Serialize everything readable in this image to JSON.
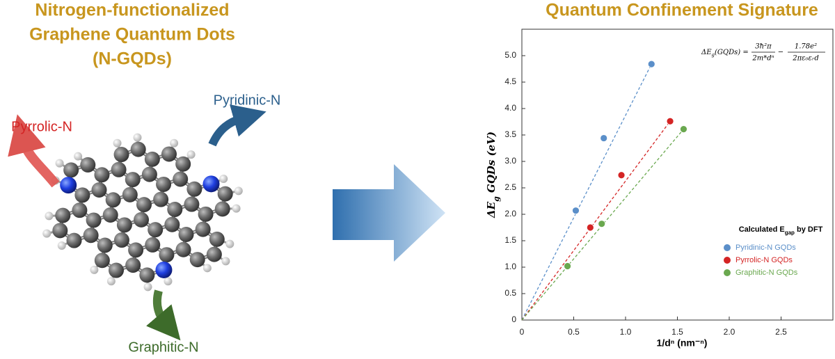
{
  "left_panel": {
    "title": [
      "Nitrogen-functionalized",
      "Graphene Quantum Dots",
      "(N-GQDs)"
    ],
    "labels": {
      "pyrrolic": "Pyrrolic-N",
      "pyridinic": "Pyridinic-N",
      "graphitic": "Graphitic-N"
    }
  },
  "chart_data": {
    "type": "scatter",
    "title": "Quantum Confinement Signature",
    "x_label": "1/dⁿ  (nm⁻ⁿ)",
    "y_label": {
      "main": "ΔE",
      "sub": "g",
      "rest": " GQDs (eV)"
    },
    "formula": {
      "lhs": "ΔE",
      "lhs_sub": "g",
      "lhs_rest": "(GQDs) =",
      "frac1_num": "3ħ²π",
      "frac1_den": "2m*dⁿ",
      "minus": "−",
      "frac2_num": "1.78e²",
      "frac2_den": "2πε₀εᵣd"
    },
    "legend_title": {
      "main": "Calculated E",
      "sub": "gap",
      "rest": " by DFT"
    },
    "xlim": [
      0,
      3
    ],
    "ylim": [
      0,
      5.5
    ],
    "xticks": [
      0,
      0.5,
      {
        "value": 1,
        "label": "1.0"
      },
      1.5,
      {
        "value": 2,
        "label": "2.0"
      },
      2.5
    ],
    "yticks": [
      0,
      0.5,
      {
        "value": 1,
        "label": "1.0"
      },
      1.5,
      {
        "value": 2,
        "label": "2.0"
      },
      2.5,
      {
        "value": 3,
        "label": "3.0"
      },
      3.5,
      {
        "value": 4,
        "label": "4.0"
      },
      4.5,
      {
        "value": 5,
        "label": "5.0"
      }
    ],
    "series": [
      {
        "name": "Pyridinic-N GQDs",
        "color": "#5b8fc9",
        "x": [
          0.52,
          0.79,
          1.25
        ],
        "values": [
          2.07,
          3.44,
          4.84
        ]
      },
      {
        "name": "Pyrrolic-N GQDs",
        "color": "#d42424",
        "x": [
          0.66,
          0.96,
          1.43
        ],
        "values": [
          1.75,
          2.74,
          3.76
        ]
      },
      {
        "name": "Graphitic-N GQDs",
        "color": "#6aa84f",
        "x": [
          0.44,
          0.77,
          1.56
        ],
        "values": [
          1.02,
          1.82,
          3.61
        ]
      }
    ]
  }
}
